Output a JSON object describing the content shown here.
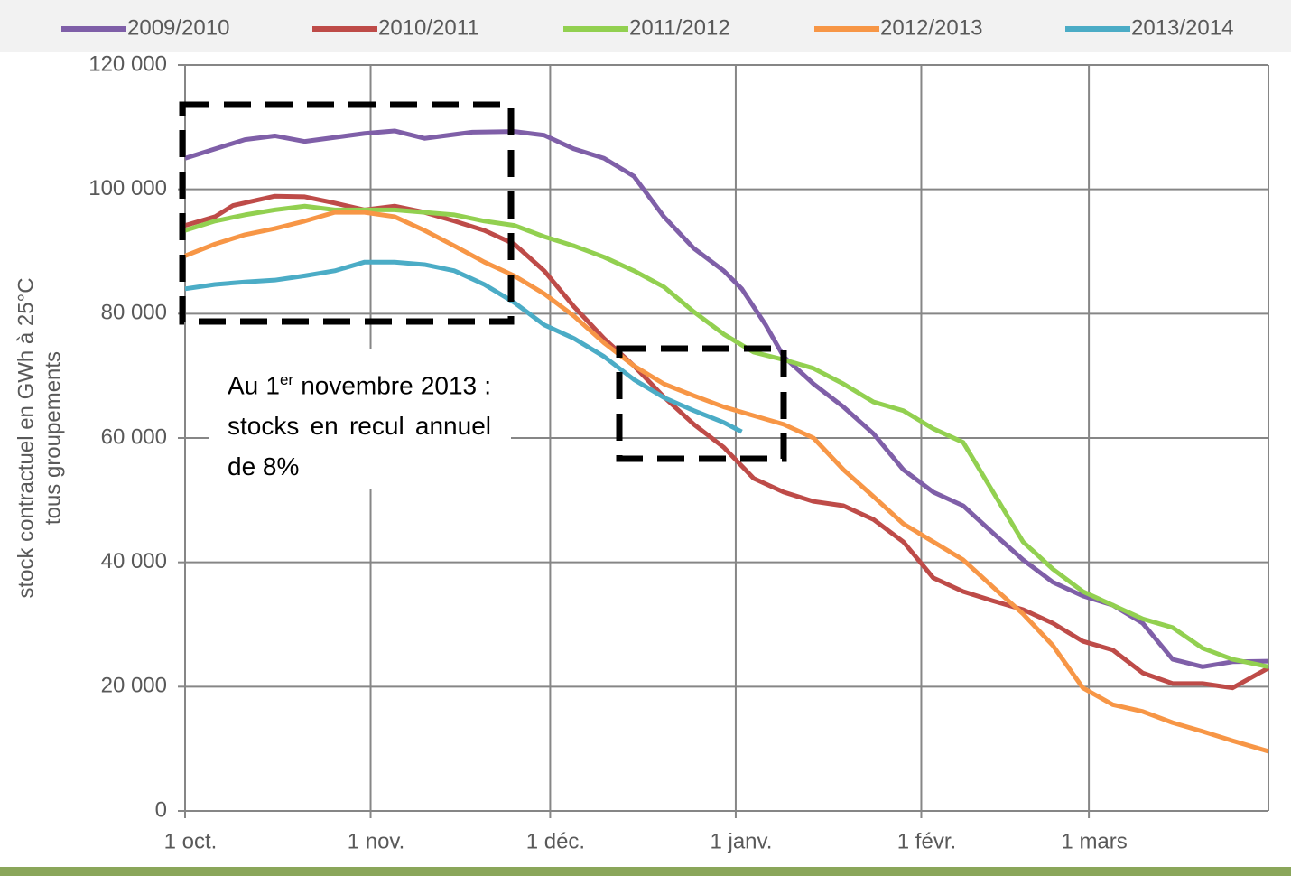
{
  "chart_data": {
    "type": "line",
    "y_label": [
      "stock contractuel en GWh à 25°C",
      "tous groupements"
    ],
    "annotation": {
      "before": "Au 1",
      "sup": "er",
      "after": "novembre 2013 : stocks en recul annuel de 8%"
    },
    "xlim": [
      0,
      181
    ],
    "xticks": [
      {
        "value": 0,
        "label": "1 oct."
      },
      {
        "value": 31,
        "label": "1 nov."
      },
      {
        "value": 61,
        "label": "1 déc."
      },
      {
        "value": 92,
        "label": "1 janv."
      },
      {
        "value": 123,
        "label": "1 févr."
      },
      {
        "value": 151,
        "label": "1 mars"
      }
    ],
    "ylim": [
      0,
      120000
    ],
    "yticks": [
      0,
      {
        "value": 20000,
        "label": "20 000"
      },
      {
        "value": 40000,
        "label": "40 000"
      },
      {
        "value": 60000,
        "label": "60 000"
      },
      {
        "value": 80000,
        "label": "80 000"
      },
      {
        "value": 100000,
        "label": "100 000"
      },
      {
        "value": 120000,
        "label": "120 000"
      }
    ],
    "grid": true,
    "series": [
      {
        "name": "2009/2010",
        "color": "#7f5fa8",
        "x": [
          0,
          10,
          15,
          20,
          30,
          35,
          40,
          48,
          55,
          60,
          65,
          70,
          75,
          80,
          85,
          90,
          93,
          97,
          100,
          105,
          110,
          115,
          120,
          125,
          130,
          135,
          140,
          145,
          150,
          155,
          160,
          165,
          170,
          175,
          181
        ],
        "values": [
          105000,
          108000,
          108600,
          107700,
          109000,
          109400,
          108200,
          109200,
          109300,
          108700,
          106500,
          105000,
          102100,
          95600,
          90500,
          86900,
          84000,
          78200,
          73100,
          68700,
          65000,
          60700,
          54900,
          51300,
          49100,
          44700,
          40400,
          36800,
          34600,
          33100,
          30200,
          24400,
          23200,
          24000,
          24100
        ]
      },
      {
        "name": "2010/2011",
        "color": "#be4b48",
        "x": [
          0,
          5,
          8,
          15,
          20,
          25,
          30,
          35,
          40,
          45,
          50,
          55,
          60,
          65,
          70,
          75,
          80,
          85,
          90,
          95,
          100,
          105,
          110,
          115,
          120,
          125,
          130,
          135,
          140,
          145,
          150,
          155,
          160,
          165,
          170,
          175,
          181
        ],
        "values": [
          94200,
          95600,
          97400,
          98900,
          98800,
          97800,
          96700,
          97300,
          96300,
          94900,
          93400,
          91200,
          86900,
          81100,
          76000,
          71600,
          66600,
          62200,
          58500,
          53500,
          51300,
          49800,
          49100,
          46900,
          43300,
          37500,
          35300,
          33800,
          32400,
          30200,
          27300,
          25900,
          22200,
          20500,
          20500,
          19800,
          23000
        ]
      },
      {
        "name": "2011/2012",
        "color": "#92d050",
        "x": [
          0,
          5,
          10,
          15,
          20,
          25,
          30,
          35,
          40,
          45,
          50,
          55,
          60,
          65,
          70,
          75,
          80,
          85,
          90,
          95,
          100,
          105,
          110,
          115,
          120,
          125,
          130,
          135,
          140,
          145,
          150,
          155,
          160,
          165,
          170,
          175,
          181
        ],
        "values": [
          93400,
          94900,
          95900,
          96700,
          97300,
          96700,
          96700,
          96700,
          96300,
          95900,
          94900,
          94200,
          92400,
          90900,
          89100,
          86900,
          84300,
          80300,
          76700,
          73800,
          72600,
          71200,
          68700,
          65800,
          64400,
          61500,
          59300,
          51300,
          43300,
          38900,
          35300,
          33100,
          30900,
          29500,
          26200,
          24400,
          23200
        ]
      },
      {
        "name": "2012/2013",
        "color": "#f79646",
        "x": [
          0,
          5,
          10,
          15,
          20,
          25,
          30,
          35,
          40,
          45,
          50,
          55,
          60,
          65,
          70,
          75,
          80,
          85,
          90,
          95,
          100,
          105,
          110,
          115,
          120,
          125,
          130,
          135,
          140,
          145,
          150,
          155,
          160,
          165,
          170,
          175,
          181
        ],
        "values": [
          89300,
          91200,
          92700,
          93700,
          94900,
          96300,
          96300,
          95600,
          93400,
          90900,
          88300,
          86100,
          83200,
          79600,
          75300,
          71600,
          68700,
          66800,
          65000,
          63600,
          62200,
          60000,
          54900,
          50600,
          46200,
          43300,
          40400,
          36000,
          31700,
          26600,
          19800,
          17100,
          16000,
          14200,
          12800,
          11300,
          9600
        ]
      },
      {
        "name": "2013/2014",
        "color": "#4bacc6",
        "x": [
          0,
          5,
          10,
          15,
          20,
          25,
          30,
          35,
          40,
          45,
          50,
          55,
          60,
          65,
          70,
          75,
          80,
          85,
          90,
          93
        ],
        "values": [
          84000,
          84700,
          85100,
          85400,
          86100,
          86900,
          88300,
          88300,
          87900,
          86900,
          84700,
          81800,
          78200,
          76000,
          73100,
          69400,
          66500,
          64400,
          62500,
          61000
        ]
      }
    ]
  }
}
